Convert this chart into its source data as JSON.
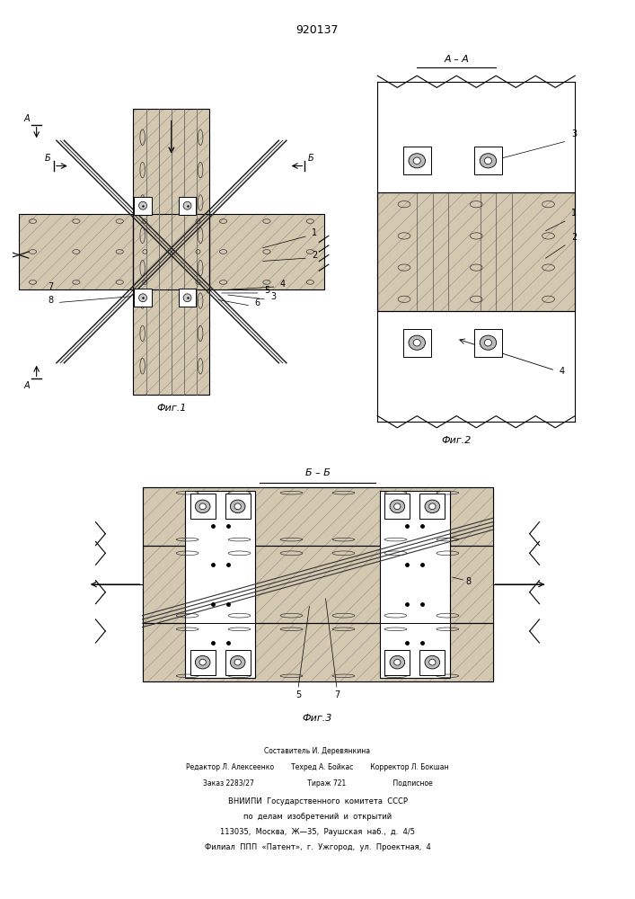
{
  "title": "920137",
  "bg_color": "#ffffff",
  "concrete_color": "#d4c8b0",
  "white_color": "#ffffff",
  "line_color": "#000000",
  "footer_lines": [
    "Составитель И. Деревянкина",
    "Редактор Л. Алексеенко        Техред А. Бойкас        Корректор Л. Бокшан",
    "Заказ 2283/27                         Тираж 721                      Подписное",
    "ВНИИПИ  Государственного  комитета  СССР",
    "по  делам  изобретений  и  открытий",
    "113035,  Москва,  Ж—35,  Раушская  наб.,  д.  4/5",
    "Филиал  ППП  «Патент»,  г.  Ужгород,  ул.  Проектная,  4"
  ]
}
